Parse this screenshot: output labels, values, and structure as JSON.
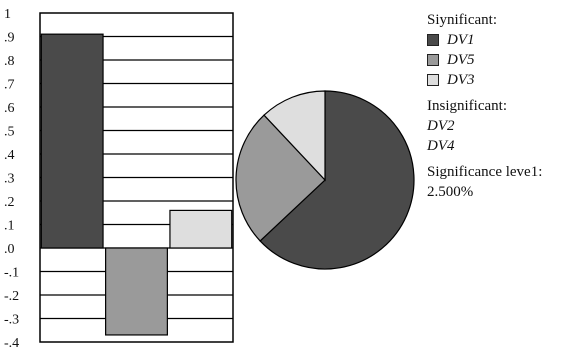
{
  "chart_data": [
    {
      "type": "bar",
      "categories": [
        "DV1",
        "DV5",
        "DV3"
      ],
      "values": [
        0.91,
        -0.37,
        0.16
      ],
      "colors": [
        "#4a4a4a",
        "#9a9a9a",
        "#dedede"
      ],
      "ylim": [
        -0.4,
        1.0
      ],
      "yticks": [
        "1",
        ".9",
        ".8",
        ".7",
        ".6",
        ".5",
        ".4",
        ".3",
        ".2",
        ".1",
        ".0",
        "-.1",
        "-.2",
        "-.3",
        "-.4"
      ],
      "grid": true
    },
    {
      "type": "pie",
      "labels": [
        "DV1",
        "DV5",
        "DV3"
      ],
      "values": [
        63,
        25,
        12
      ],
      "colors": [
        "#4a4a4a",
        "#9a9a9a",
        "#dedede"
      ]
    }
  ],
  "legend": {
    "significant_title": "Siynificant:",
    "significant_items": [
      "DV1",
      "DV5",
      "DV3"
    ],
    "insignificant_title": "Insignificant:",
    "insignificant_items": [
      "DV2",
      "DV4"
    ],
    "level_title": "Significance leve1:",
    "level_value": "2.500%"
  }
}
